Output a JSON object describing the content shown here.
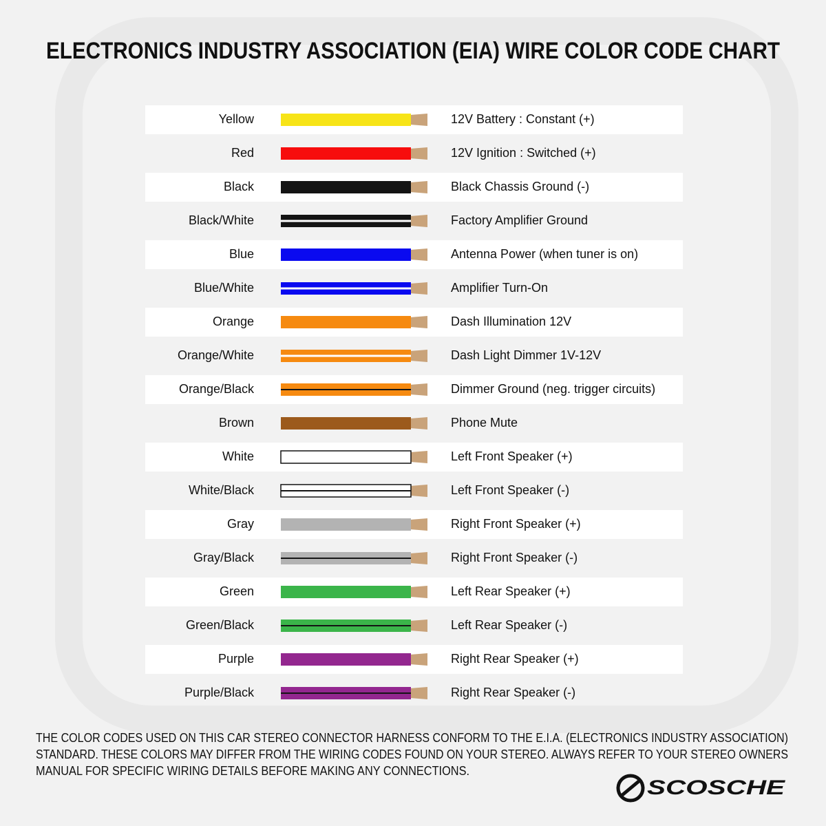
{
  "title": "ELECTRONICS INDUSTRY ASSOCIATION (EIA) WIRE COLOR CODE CHART",
  "rows": [
    {
      "color_name": "Yellow",
      "function": "12V Battery : Constant (+)",
      "color": "#f7e417",
      "stripe": null
    },
    {
      "color_name": "Red",
      "function": "12V Ignition : Switched (+)",
      "color": "#f70d0d",
      "stripe": null
    },
    {
      "color_name": "Black",
      "function": "Black Chassis Ground (-)",
      "color": "#141414",
      "stripe": null
    },
    {
      "color_name": "Black/White",
      "function": "Factory Amplifier Ground",
      "color": "#141414",
      "stripe": "#ffffff"
    },
    {
      "color_name": "Blue",
      "function": "Antenna Power (when tuner is on)",
      "color": "#0a0af0",
      "stripe": null
    },
    {
      "color_name": "Blue/White",
      "function": "Amplifier Turn-On",
      "color": "#0a0af0",
      "stripe": "#ffffff"
    },
    {
      "color_name": "Orange",
      "function": "Dash Illumination 12V",
      "color": "#f68a10",
      "stripe": null
    },
    {
      "color_name": "Orange/White",
      "function": "Dash Light Dimmer 1V-12V",
      "color": "#f68a10",
      "stripe": "#ffffff"
    },
    {
      "color_name": "Orange/Black",
      "function": "Dimmer Ground (neg. trigger circuits)",
      "color": "#f68a10",
      "stripe": "#141414"
    },
    {
      "color_name": "Brown",
      "function": "Phone Mute",
      "color": "#9c5a1c",
      "stripe": null
    },
    {
      "color_name": "White",
      "function": "Left Front Speaker (+)",
      "color": "#ffffff",
      "stripe": null
    },
    {
      "color_name": "White/Black",
      "function": "Left Front Speaker (-)",
      "color": "#ffffff",
      "stripe": "#141414"
    },
    {
      "color_name": "Gray",
      "function": "Right Front Speaker (+)",
      "color": "#b3b3b3",
      "stripe": null
    },
    {
      "color_name": "Gray/Black",
      "function": "Right Front Speaker (-)",
      "color": "#b3b3b3",
      "stripe": "#141414"
    },
    {
      "color_name": "Green",
      "function": "Left Rear Speaker (+)",
      "color": "#3bb54a",
      "stripe": null
    },
    {
      "color_name": "Green/Black",
      "function": "Left Rear Speaker (-)",
      "color": "#3bb54a",
      "stripe": "#141414"
    },
    {
      "color_name": "Purple",
      "function": "Right Rear Speaker (+)",
      "color": "#93278f",
      "stripe": null
    },
    {
      "color_name": "Purple/Black",
      "function": "Right Rear Speaker (-)",
      "color": "#93278f",
      "stripe": "#141414"
    }
  ],
  "note_lines": [
    "THE COLOR CODES USED ON THIS CAR STEREO CONNECTOR HARNESS CONFORM TO THE E.I.A. (ELECTRONICS INDUSTRY ASSOCIATION)",
    "STANDARD. THESE COLORS MAY DIFFER FROM THE WIRING CODES FOUND ON YOUR STEREO. ALWAYS REFER TO YOUR STEREO OWNERS",
    "MANUAL FOR SPECIFIC WIRING DETAILS BEFORE MAKING ANY CONNECTIONS."
  ],
  "logo": "SCOSCHE"
}
